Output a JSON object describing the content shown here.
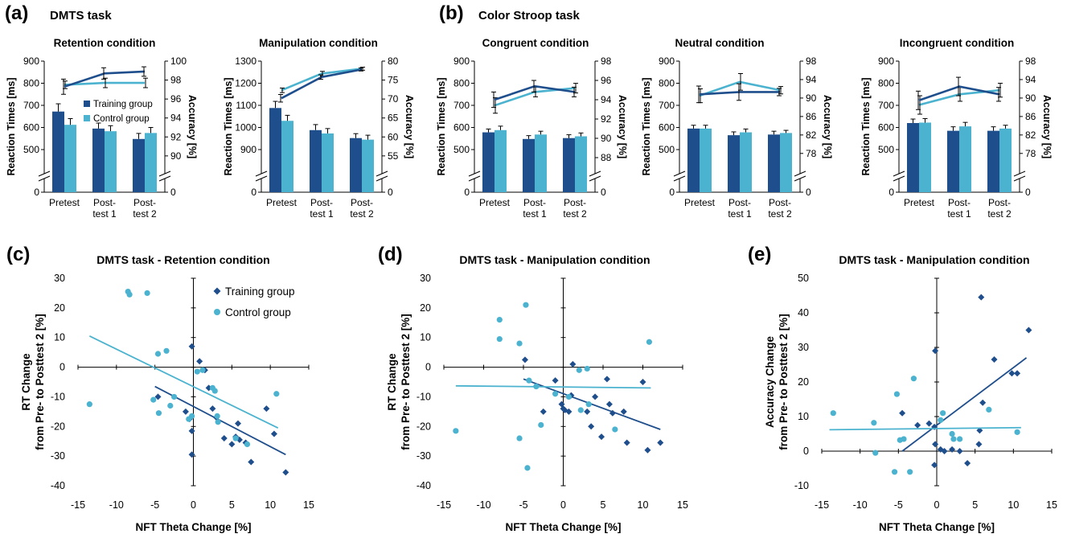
{
  "colors": {
    "training": "#1f4e8c",
    "control": "#4bb3cf",
    "axis": "#000000"
  },
  "section_a": {
    "letter": "(a)",
    "title": "DMTS task"
  },
  "section_b": {
    "letter": "(b)",
    "title": "Color Stroop task"
  },
  "section_c": {
    "letter": "(c)"
  },
  "section_d": {
    "letter": "(d)"
  },
  "section_e": {
    "letter": "(e)"
  },
  "chart_data": [
    {
      "type": "bar",
      "title": "Retention condition",
      "ylabel": "Reaction Times [ms]",
      "y2label": "Accuracy [%]",
      "categories": [
        [
          "Pretest"
        ],
        [
          "Post-",
          "test 1"
        ],
        [
          "Post-",
          "test 2"
        ]
      ],
      "rt_ticks": [
        500,
        600,
        700,
        800,
        900
      ],
      "rt_range": [
        420,
        900
      ],
      "acc_ticks": [
        90,
        92,
        94,
        96,
        98,
        100
      ],
      "acc_range": [
        88.8,
        100
      ],
      "grid": false,
      "legend_placement": "middle",
      "legend": [
        "Training group",
        "Control group"
      ],
      "series": [
        {
          "name": "Training group",
          "rt": [
            672,
            595,
            548
          ],
          "rt_err": [
            35,
            25,
            25
          ],
          "acc": [
            97.3,
            98.7,
            98.9
          ],
          "acc_err": [
            0.8,
            0.6,
            0.5
          ]
        },
        {
          "name": "Control group",
          "rt": [
            612,
            583,
            575
          ],
          "rt_err": [
            28,
            25,
            25
          ],
          "acc": [
            97.5,
            97.7,
            97.7
          ],
          "acc_err": [
            0.4,
            0.5,
            0.5
          ]
        }
      ]
    },
    {
      "type": "bar",
      "title": "Manipulation condition",
      "ylabel": "Reaction Times [ms]",
      "y2label": "Accuracy [%]",
      "categories": [
        [
          "Pretest"
        ],
        [
          "Post-",
          "test 1"
        ],
        [
          "Post-",
          "test 2"
        ]
      ],
      "rt_ticks": [
        900,
        1000,
        1100,
        1200,
        1300
      ],
      "rt_range": [
        820,
        1300
      ],
      "acc_ticks": [
        55,
        60,
        65,
        70,
        75,
        80
      ],
      "acc_range": [
        52,
        80
      ],
      "grid": false,
      "series": [
        {
          "name": "Training group",
          "rt": [
            1088,
            988,
            952
          ],
          "rt_err": [
            30,
            25,
            20
          ],
          "acc": [
            70.2,
            75.8,
            77.8
          ],
          "acc_err": [
            1.0,
            0.6,
            0.4
          ]
        },
        {
          "name": "Control group",
          "rt": [
            1030,
            973,
            945
          ],
          "rt_err": [
            25,
            22,
            20
          ],
          "acc": [
            72.3,
            76.7,
            78.0
          ],
          "acc_err": [
            0.6,
            0.6,
            0.4
          ]
        }
      ]
    },
    {
      "type": "bar",
      "title": "Congruent condition",
      "ylabel": "Reaction Times [ms]",
      "y2label": "Accuracy [%]",
      "categories": [
        [
          "Pretest"
        ],
        [
          "Post-",
          "test 1"
        ],
        [
          "Post-",
          "test 2"
        ]
      ],
      "rt_ticks": [
        500,
        600,
        700,
        800,
        900
      ],
      "rt_range": [
        420,
        900
      ],
      "acc_ticks": [
        88,
        90,
        92,
        94,
        96,
        98
      ],
      "acc_range": [
        87,
        98
      ],
      "grid": false,
      "series": [
        {
          "name": "Training group",
          "rt": [
            578,
            548,
            552
          ],
          "rt_err": [
            15,
            15,
            15
          ],
          "acc": [
            94.0,
            95.4,
            94.8
          ],
          "acc_err": [
            0.8,
            0.6,
            0.5
          ]
        },
        {
          "name": "Control group",
          "rt": [
            588,
            568,
            560
          ],
          "rt_err": [
            18,
            15,
            15
          ],
          "acc": [
            93.4,
            94.8,
            95.2
          ],
          "acc_err": [
            0.8,
            0.5,
            0.5
          ]
        }
      ]
    },
    {
      "type": "bar",
      "title": "Neutral condition",
      "ylabel": "Reaction Times [ms]",
      "y2label": "Accuracy [%]",
      "categories": [
        [
          "Pretest"
        ],
        [
          "Post-",
          "test 1"
        ],
        [
          "Post-",
          "test 2"
        ]
      ],
      "rt_ticks": [
        500,
        600,
        700,
        800,
        900
      ],
      "rt_range": [
        420,
        900
      ],
      "acc_ticks": [
        78,
        82,
        86,
        90,
        94,
        98
      ],
      "acc_range": [
        75,
        98
      ],
      "grid": false,
      "series": [
        {
          "name": "Training group",
          "rt": [
            595,
            565,
            568
          ],
          "rt_err": [
            15,
            15,
            15
          ],
          "acc": [
            90.8,
            91.3,
            91.3
          ],
          "acc_err": [
            1.8,
            1.8,
            0.8
          ]
        },
        {
          "name": "Control group",
          "rt": [
            595,
            578,
            575
          ],
          "rt_err": [
            15,
            15,
            12
          ],
          "acc": [
            90.5,
            93.5,
            91.7
          ],
          "acc_err": [
            1.5,
            1.8,
            0.8
          ]
        }
      ]
    },
    {
      "type": "bar",
      "title": "Incongruent condition",
      "ylabel": "Reaction Times [ms]",
      "y2label": "Accuracy [%]",
      "categories": [
        [
          "Pretest"
        ],
        [
          "Post-",
          "test 1"
        ],
        [
          "Post-",
          "test 2"
        ]
      ],
      "rt_ticks": [
        500,
        600,
        700,
        800,
        900
      ],
      "rt_range": [
        420,
        900
      ],
      "acc_ticks": [
        78,
        82,
        86,
        90,
        94,
        98
      ],
      "acc_range": [
        75,
        98
      ],
      "grid": false,
      "series": [
        {
          "name": "Training group",
          "rt": [
            620,
            585,
            585
          ],
          "rt_err": [
            18,
            18,
            18
          ],
          "acc": [
            89.5,
            92.5,
            90.8
          ],
          "acc_err": [
            2.0,
            2.0,
            1.5
          ]
        },
        {
          "name": "Control group",
          "rt": [
            622,
            605,
            595
          ],
          "rt_err": [
            18,
            18,
            15
          ],
          "acc": [
            88.5,
            90.8,
            91.7
          ],
          "acc_err": [
            2.0,
            1.5,
            1.5
          ]
        }
      ]
    },
    {
      "type": "scatter",
      "title": "DMTS task - Retention condition",
      "xlabel": "NFT Theta Change [%]",
      "ylabel": [
        "RT Change",
        "from Pre- to Posttest 2 [%]"
      ],
      "xlim": [
        -15,
        15
      ],
      "ylim": [
        -40,
        30
      ],
      "x_ticks": [
        -15,
        -10,
        -5,
        0,
        5,
        10,
        15
      ],
      "y_ticks": [
        -40,
        -30,
        -20,
        -10,
        0,
        10,
        20,
        30
      ],
      "grid": false,
      "legend_placement": "top-right",
      "legend": [
        "Training group",
        "Control group"
      ],
      "series": [
        {
          "name": "Training group",
          "marker": "diamond",
          "points": [
            [
              -0.2,
              7
            ],
            [
              -0.2,
              -21.5
            ],
            [
              -0.2,
              -29.5
            ],
            [
              0.8,
              2
            ],
            [
              1.5,
              -1
            ],
            [
              -4.6,
              -10
            ],
            [
              -1,
              -15
            ],
            [
              -0.5,
              -17.5
            ],
            [
              2,
              -7
            ],
            [
              2.5,
              -14
            ],
            [
              3,
              -17
            ],
            [
              4,
              -24
            ],
            [
              5,
              -26
            ],
            [
              5.5,
              -23.5
            ],
            [
              5.8,
              -19
            ],
            [
              6,
              -24.5
            ],
            [
              6.8,
              -25.5
            ],
            [
              7.5,
              -32
            ],
            [
              9.5,
              -14
            ],
            [
              10.5,
              -22.5
            ],
            [
              12,
              -35.5
            ]
          ],
          "trend": [
            [
              -5,
              -6.5
            ],
            [
              12,
              -29.5
            ]
          ]
        },
        {
          "name": "Control group",
          "marker": "circle",
          "points": [
            [
              -13.5,
              -12.5
            ],
            [
              -8.5,
              25.5
            ],
            [
              -8.3,
              24.5
            ],
            [
              -6,
              25
            ],
            [
              -5.2,
              -11
            ],
            [
              -4.6,
              4.5
            ],
            [
              -4.5,
              -15.5
            ],
            [
              -3.5,
              5.5
            ],
            [
              -3,
              -13
            ],
            [
              -2.5,
              -10
            ],
            [
              -0.6,
              -17.5
            ],
            [
              -0.2,
              -16.5
            ],
            [
              0.5,
              -1.5
            ],
            [
              1.2,
              -1
            ],
            [
              2.5,
              -7
            ],
            [
              2.8,
              -8
            ],
            [
              3.1,
              -16.5
            ],
            [
              3.2,
              -18.5
            ],
            [
              5.5,
              -24
            ],
            [
              7,
              -26
            ],
            [
              10.8,
              -9
            ]
          ],
          "trend": [
            [
              -13.5,
              10.5
            ],
            [
              11,
              -20.5
            ]
          ]
        }
      ]
    },
    {
      "type": "scatter",
      "title": "DMTS task - Manipulation condition",
      "xlabel": "NFT Theta Change [%]",
      "ylabel": [
        "RT Change",
        "from Pre- to Posttest 2 [%]"
      ],
      "xlim": [
        -15,
        15
      ],
      "ylim": [
        -40,
        30
      ],
      "x_ticks": [
        -15,
        -10,
        -5,
        0,
        5,
        10,
        15
      ],
      "y_ticks": [
        -40,
        -30,
        -20,
        -10,
        0,
        10,
        20,
        30
      ],
      "grid": false,
      "series": [
        {
          "name": "Training group",
          "marker": "diamond",
          "points": [
            [
              -4.8,
              2.5
            ],
            [
              -1,
              -4.5
            ],
            [
              -0.2,
              -12.5
            ],
            [
              0,
              -14
            ],
            [
              0.2,
              -14.5
            ],
            [
              0.7,
              -15
            ],
            [
              1,
              -9.5
            ],
            [
              1.2,
              1
            ],
            [
              -2.5,
              -15
            ],
            [
              3,
              -15
            ],
            [
              3.5,
              -20
            ],
            [
              4,
              -10
            ],
            [
              4.8,
              -23.5
            ],
            [
              5.5,
              -4
            ],
            [
              5.8,
              -12.5
            ],
            [
              6.2,
              -15.5
            ],
            [
              7.6,
              -15
            ],
            [
              8,
              -25.5
            ],
            [
              10,
              -5
            ],
            [
              10.6,
              -28
            ],
            [
              12.2,
              -25.5
            ]
          ],
          "trend": [
            [
              -5,
              -4
            ],
            [
              12.2,
              -21
            ]
          ]
        },
        {
          "name": "Control group",
          "marker": "circle",
          "points": [
            [
              -13.5,
              -21.5
            ],
            [
              -8,
              16
            ],
            [
              -8,
              9.5
            ],
            [
              -5.5,
              8
            ],
            [
              -5.5,
              -24
            ],
            [
              -4.7,
              21
            ],
            [
              -4.5,
              -34
            ],
            [
              -4.3,
              -4.5
            ],
            [
              -3.4,
              -6.5
            ],
            [
              -2.8,
              -19.5
            ],
            [
              -1,
              -9
            ],
            [
              0.7,
              -10
            ],
            [
              2,
              -1
            ],
            [
              2.2,
              -14.5
            ],
            [
              3.2,
              -12.5
            ],
            [
              3,
              -0.5
            ],
            [
              6.5,
              -21
            ],
            [
              10.8,
              8.5
            ]
          ],
          "trend": [
            [
              -13.5,
              -6.3
            ],
            [
              11,
              -7
            ]
          ]
        }
      ]
    },
    {
      "type": "scatter",
      "title": "DMTS task - Manipulation condition",
      "xlabel": "NFT Theta Change [%]",
      "ylabel": [
        "Accuracy Change",
        "from Pre- to Posttest 2 [%]"
      ],
      "xlim": [
        -15,
        15
      ],
      "ylim": [
        -10,
        50
      ],
      "x_ticks": [
        -15,
        -10,
        -5,
        0,
        5,
        10,
        15
      ],
      "y_ticks": [
        -10,
        0,
        10,
        20,
        30,
        40,
        50
      ],
      "grid": false,
      "series": [
        {
          "name": "Training group",
          "marker": "diamond",
          "points": [
            [
              -4.5,
              11
            ],
            [
              -2.5,
              7.5
            ],
            [
              -1,
              8
            ],
            [
              -0.3,
              7
            ],
            [
              -0.2,
              29
            ],
            [
              -0.2,
              2
            ],
            [
              -0.3,
              -4
            ],
            [
              0.5,
              0.5
            ],
            [
              1,
              0
            ],
            [
              2,
              0.5
            ],
            [
              3,
              0
            ],
            [
              4,
              -3.5
            ],
            [
              5.5,
              2
            ],
            [
              5.6,
              6
            ],
            [
              5.8,
              44.5
            ],
            [
              6,
              14
            ],
            [
              7.5,
              26.5
            ],
            [
              9.8,
              22.5
            ],
            [
              10.5,
              22.5
            ],
            [
              12,
              35
            ]
          ],
          "trend": [
            [
              -4.5,
              0
            ],
            [
              11.7,
              27
            ]
          ]
        },
        {
          "name": "Control group",
          "marker": "circle",
          "points": [
            [
              -13.5,
              11
            ],
            [
              -8.2,
              8.2
            ],
            [
              -8,
              -0.5
            ],
            [
              -5.5,
              -6
            ],
            [
              -5.2,
              16.5
            ],
            [
              -4.8,
              3.2
            ],
            [
              -4.3,
              3.5
            ],
            [
              -3.5,
              -6
            ],
            [
              -3,
              21
            ],
            [
              0.5,
              9
            ],
            [
              0.8,
              11
            ],
            [
              2,
              5
            ],
            [
              2.2,
              3.5
            ],
            [
              3,
              3.5
            ],
            [
              6.8,
              12
            ],
            [
              10.5,
              5.5
            ]
          ],
          "trend": [
            [
              -14,
              6.2
            ],
            [
              11,
              6.8
            ]
          ]
        }
      ]
    }
  ]
}
